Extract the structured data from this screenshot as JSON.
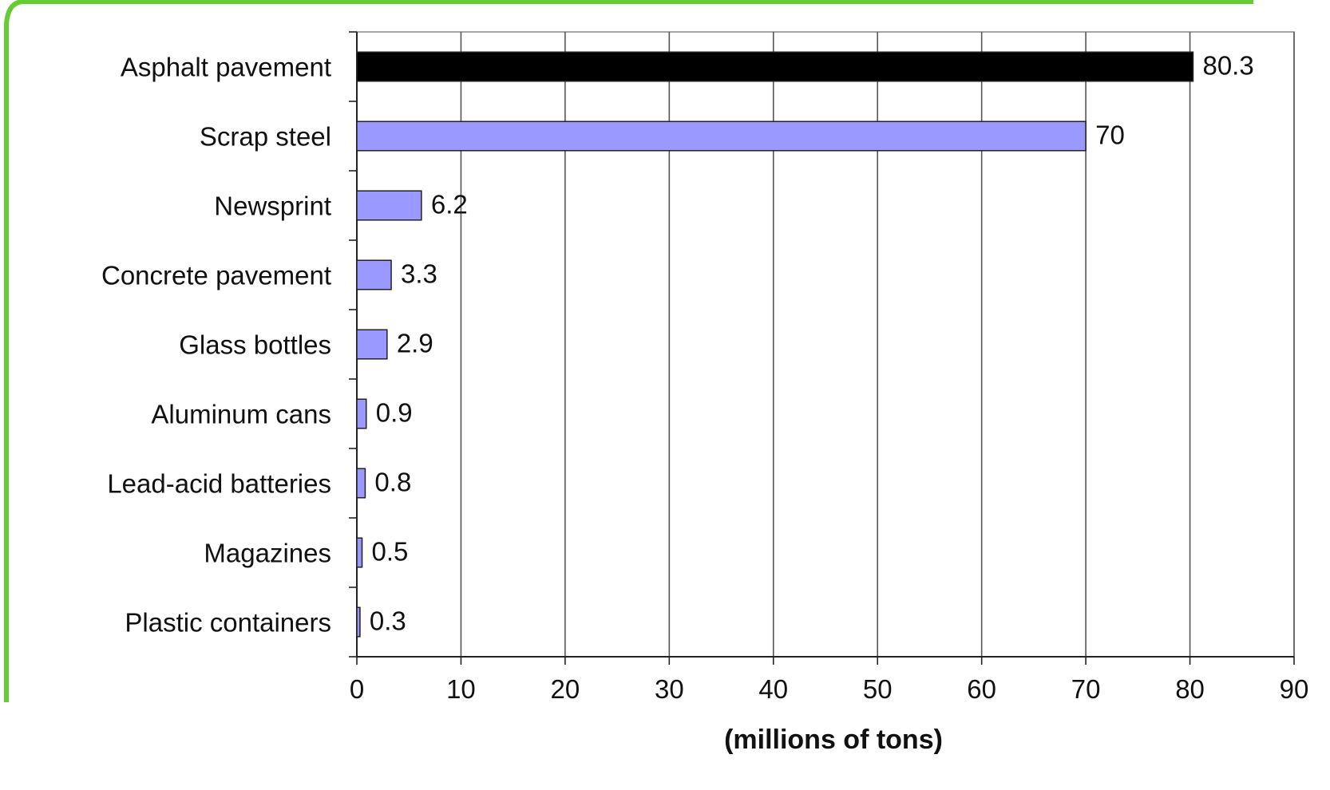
{
  "chart_data": {
    "type": "bar",
    "orientation": "horizontal",
    "categories": [
      "Asphalt pavement",
      "Scrap steel",
      "Newsprint",
      "Concrete pavement",
      "Glass bottles",
      "Aluminum cans",
      "Lead-acid batteries",
      "Magazines",
      "Plastic containers"
    ],
    "values": [
      80.3,
      70,
      6.2,
      3.3,
      2.9,
      0.9,
      0.8,
      0.5,
      0.3
    ],
    "value_labels": [
      "80.3",
      "70",
      "6.2",
      "3.3",
      "2.9",
      "0.9",
      "0.8",
      "0.5",
      "0.3"
    ],
    "xlabel": "(millions of tons)",
    "xlim": [
      0,
      90
    ],
    "xticks": [
      "0",
      "10",
      "20",
      "30",
      "40",
      "50",
      "60",
      "70",
      "80",
      "90"
    ],
    "grid": "vertical",
    "colors": {
      "bar": "#9999ff",
      "highlight_bar": "#000000",
      "grid": "#555555",
      "frame_border": "#66cc33"
    },
    "highlighted_category": "Asphalt pavement"
  }
}
